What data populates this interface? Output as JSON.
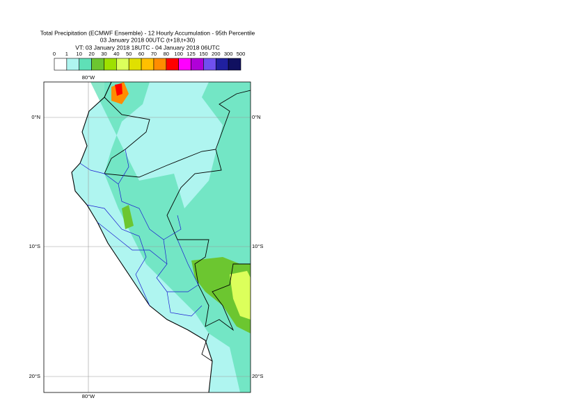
{
  "header": {
    "title": "Total Precipitation (ECMWF Ensemble) - 12 Hourly Accumulation - 95th Percentile",
    "run": "03 January 2018 00UTC (t+18,t+30)",
    "valid": "VT: 03 January 2018 18UTC - 04 January 2018 06UTC"
  },
  "legend": {
    "ticks": [
      0,
      1,
      10,
      20,
      30,
      40,
      50,
      60,
      70,
      80,
      100,
      125,
      150,
      200,
      300,
      500
    ],
    "colors": [
      "#ffffff",
      "#aff5f0",
      "#5fe0b7",
      "#6cc630",
      "#9ee000",
      "#dcff5b",
      "#e0e000",
      "#ffc000",
      "#ff8c00",
      "#ff0000",
      "#ff00ff",
      "#b000d8",
      "#7050f0",
      "#2020a0",
      "#101060"
    ]
  },
  "map": {
    "lon_labels": [
      "80°W"
    ],
    "lat_labels": [
      "0°N",
      "10°S",
      "20°S"
    ]
  }
}
